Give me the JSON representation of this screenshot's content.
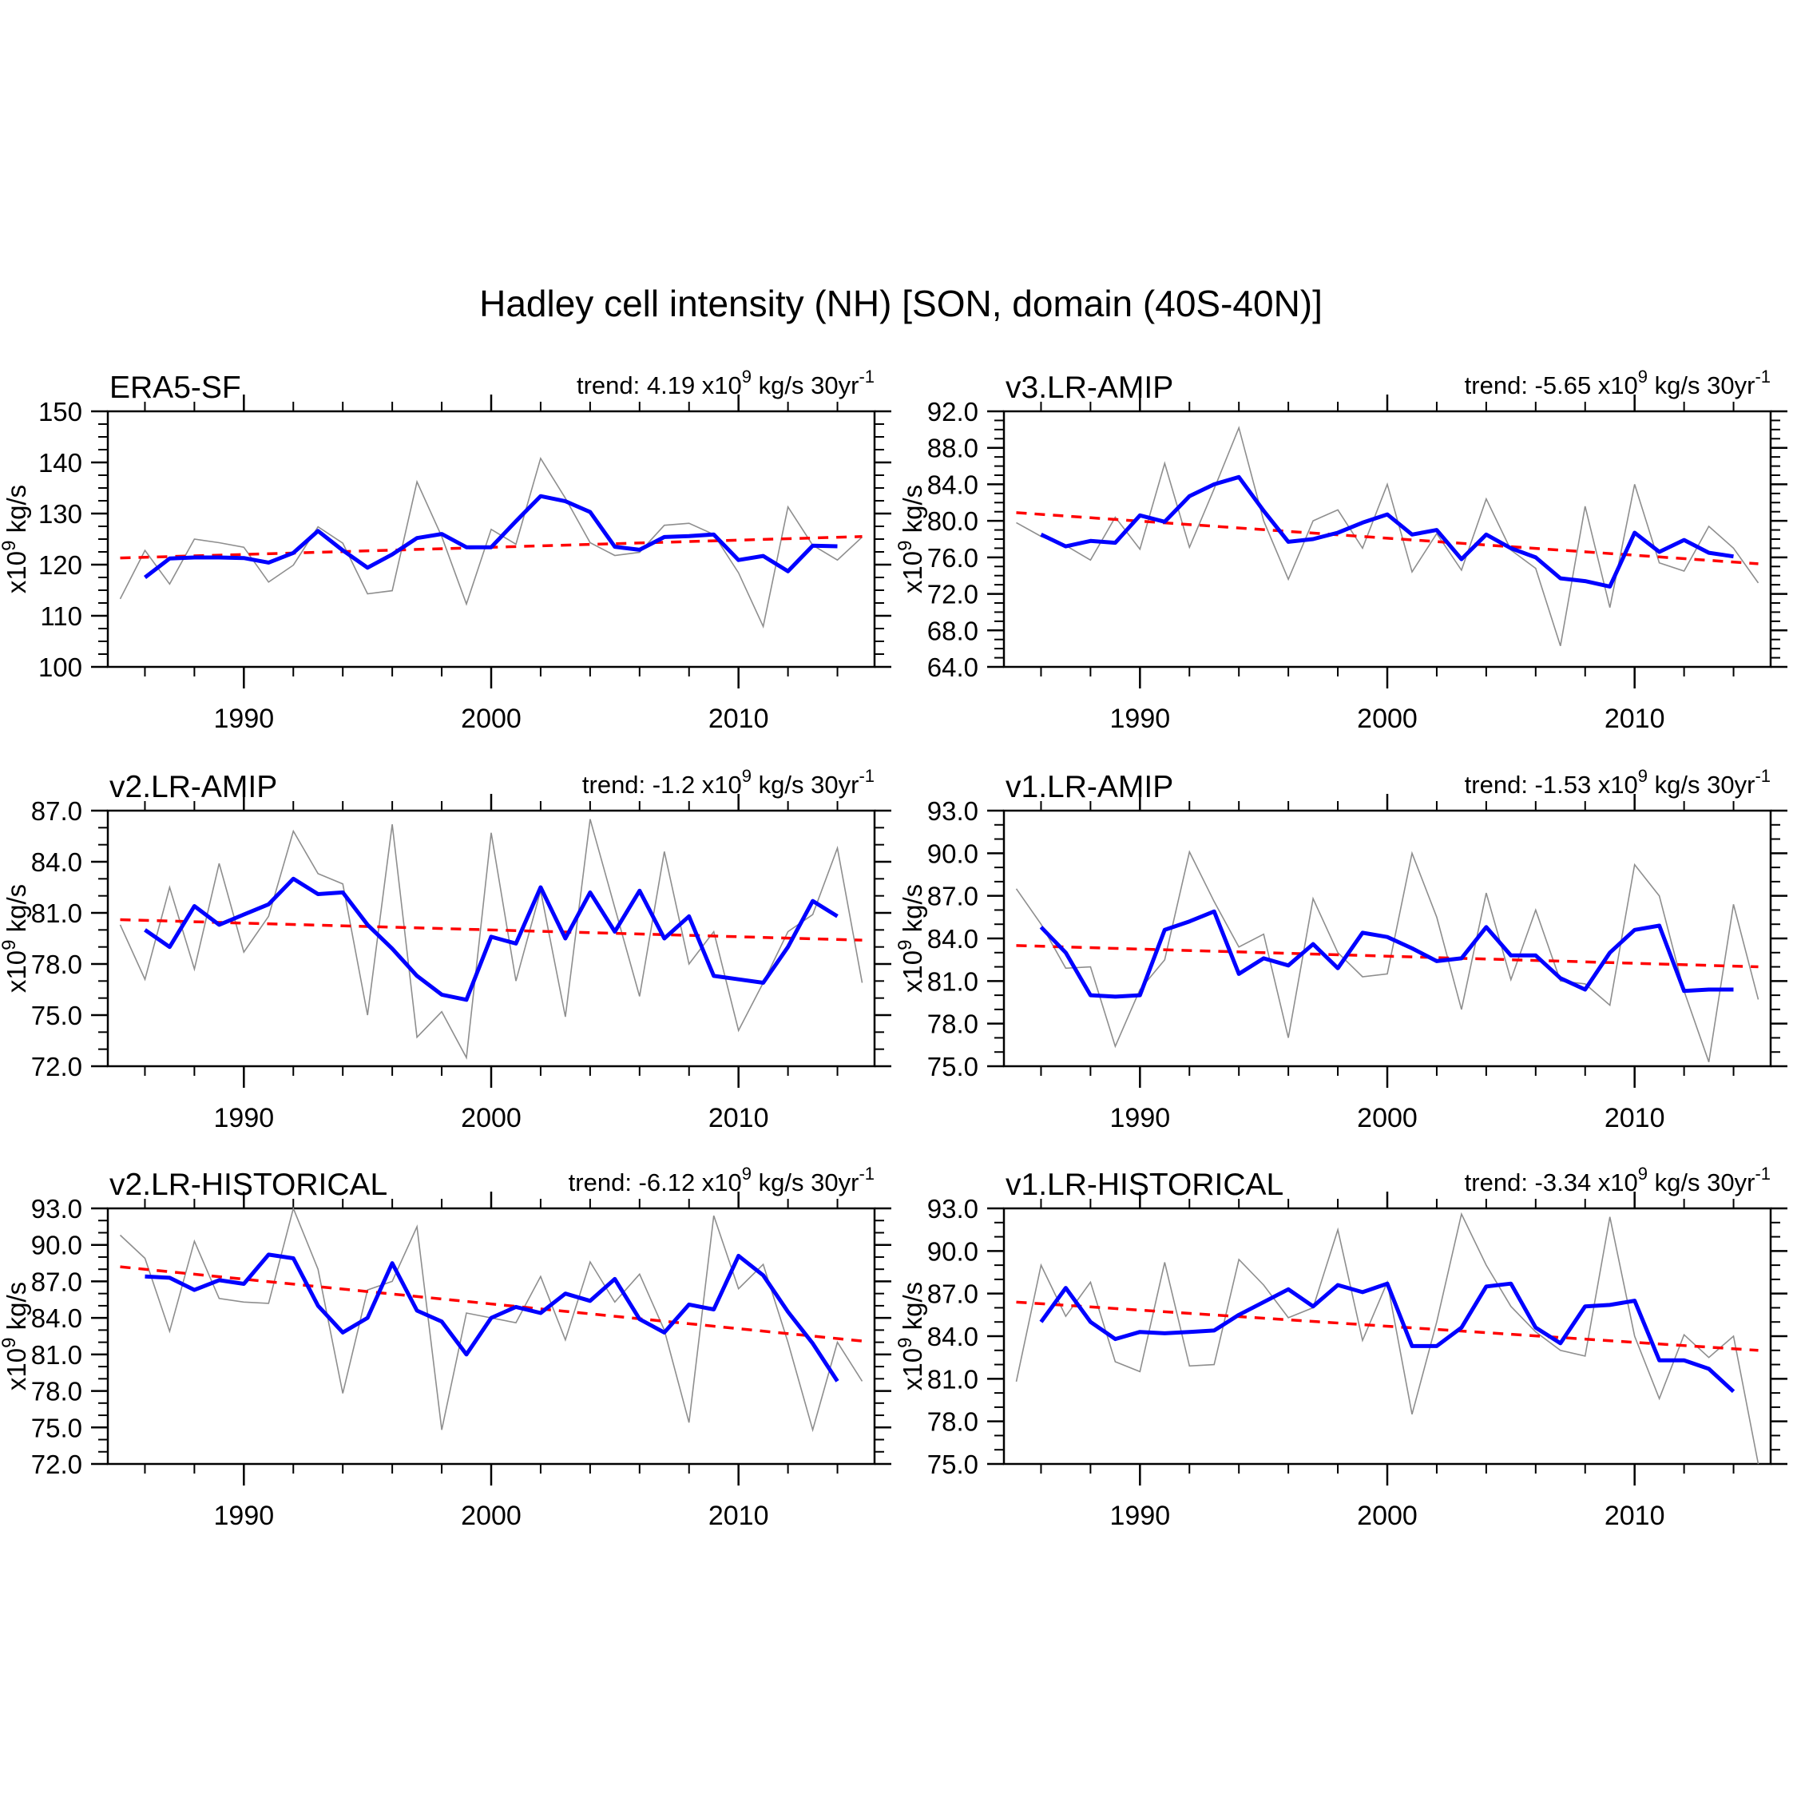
{
  "title": "Hadley cell intensity (NH) [SON, domain (40S-40N)]",
  "y_axis_label": {
    "pre": "x10",
    "sup": "9",
    "post": " kg/s"
  },
  "colors": {
    "background": "#ffffff",
    "axis": "#000000",
    "annual": "#8e8e8e",
    "smoothed": "#0000ff",
    "trend": "#ff0000"
  },
  "x_axis": {
    "lim": [
      1984.5,
      2015.5
    ],
    "major_ticks": [
      1990,
      2000,
      2010
    ],
    "tick_labels": [
      "1990",
      "2000",
      "2010"
    ],
    "minor_start": 1986,
    "minor_step": 2
  },
  "chart_data": [
    {
      "type": "line",
      "name": "ERA5-SF",
      "trend_per_30yr": 4.19,
      "trend": {
        "pre": "trend: 4.19 x10",
        "sup1": "9",
        "mid": " kg/s 30yr",
        "sup2": "-1"
      },
      "ylim": [
        100,
        150
      ],
      "y_major_ticks": [
        100,
        110,
        120,
        130,
        140,
        150
      ],
      "y_tick_labels": [
        "100",
        "110",
        "120",
        "130",
        "140",
        "150"
      ],
      "y_minor_step": 2.5,
      "series": {
        "annual": {
          "name": "annual",
          "start_year": 1985,
          "values": [
            113.3,
            122.8,
            116.2,
            125.0,
            124.3,
            123.4,
            116.6,
            119.9,
            127.4,
            124.2,
            114.3,
            114.9,
            136.2,
            125.5,
            112.3,
            126.9,
            124.0,
            140.8,
            133.0,
            124.3,
            121.8,
            122.4,
            127.7,
            128.1,
            125.9,
            118.4,
            107.9,
            131.3,
            123.8,
            120.9,
            125.4
          ]
        },
        "smoothed": {
          "name": "smoothed",
          "start_year": 1986,
          "values": [
            117.5,
            121.2,
            121.4,
            121.4,
            121.3,
            120.4,
            122.3,
            126.6,
            122.8,
            119.4,
            122.0,
            125.2,
            126.0,
            123.4,
            123.4,
            128.5,
            133.4,
            132.4,
            130.3,
            123.5,
            122.9,
            125.4,
            125.6,
            125.9,
            120.9,
            121.7,
            118.7,
            123.7,
            123.6
          ]
        },
        "trend_line": {
          "x": [
            1985,
            2015
          ],
          "values": [
            121.3,
            125.5
          ]
        }
      }
    },
    {
      "type": "line",
      "name": "v3.LR-AMIP",
      "trend_per_30yr": -5.65,
      "trend": {
        "pre": "trend: -5.65 x10",
        "sup1": "9",
        "mid": " kg/s 30yr",
        "sup2": "-1"
      },
      "ylim": [
        64,
        92
      ],
      "y_major_ticks": [
        64,
        68,
        72,
        76,
        80,
        84,
        88,
        92
      ],
      "y_tick_labels": [
        "64.0",
        "68.0",
        "72.0",
        "76.0",
        "80.0",
        "84.0",
        "88.0",
        "92.0"
      ],
      "y_minor_step": 1,
      "series": {
        "annual": {
          "name": "annual",
          "start_year": 1985,
          "values": [
            79.8,
            78.3,
            77.3,
            75.7,
            80.4,
            76.9,
            86.3,
            77.1,
            83.5,
            90.2,
            80.0,
            73.6,
            80.0,
            81.2,
            77.0,
            84.0,
            74.4,
            78.6,
            74.6,
            82.4,
            76.8,
            74.8,
            66.3,
            81.6,
            70.5,
            84.0,
            75.4,
            74.5,
            79.4,
            77.0,
            73.2
          ]
        },
        "smoothed": {
          "name": "smoothed",
          "start_year": 1986,
          "values": [
            78.5,
            77.2,
            77.8,
            77.6,
            80.6,
            79.9,
            82.7,
            84.0,
            84.8,
            81.1,
            77.7,
            78.0,
            78.7,
            79.8,
            80.7,
            78.5,
            79.0,
            75.8,
            78.5,
            77.0,
            76.0,
            73.7,
            73.4,
            72.8,
            78.7,
            76.6,
            77.9,
            76.5,
            76.1
          ]
        },
        "trend_line": {
          "x": [
            1985,
            2015
          ],
          "values": [
            80.9,
            75.3
          ]
        }
      }
    },
    {
      "type": "line",
      "name": "v2.LR-AMIP",
      "trend_per_30yr": -1.2,
      "trend": {
        "pre": "trend: -1.2 x10",
        "sup1": "9",
        "mid": " kg/s 30yr",
        "sup2": "-1"
      },
      "ylim": [
        72,
        87
      ],
      "y_major_ticks": [
        72,
        75,
        78,
        81,
        84,
        87
      ],
      "y_tick_labels": [
        "72.0",
        "75.0",
        "78.0",
        "81.0",
        "84.0",
        "87.0"
      ],
      "y_minor_step": 1,
      "series": {
        "annual": {
          "name": "annual",
          "start_year": 1985,
          "values": [
            80.3,
            77.1,
            82.5,
            77.7,
            83.9,
            78.7,
            80.8,
            85.8,
            83.3,
            82.7,
            75.0,
            86.2,
            73.7,
            75.2,
            72.5,
            85.7,
            77.0,
            82.3,
            74.9,
            86.5,
            81.3,
            76.1,
            84.6,
            78.0,
            79.9,
            74.1,
            76.9,
            79.9,
            80.9,
            84.8,
            76.9
          ]
        },
        "smoothed": {
          "name": "smoothed",
          "start_year": 1986,
          "values": [
            80.0,
            79.0,
            81.4,
            80.3,
            80.9,
            81.5,
            83.0,
            82.1,
            82.2,
            80.3,
            78.9,
            77.3,
            76.2,
            75.9,
            79.6,
            79.2,
            82.5,
            79.5,
            82.2,
            79.9,
            82.3,
            79.5,
            80.8,
            77.3,
            77.1,
            76.9,
            79.0,
            81.7,
            80.8
          ]
        },
        "trend_line": {
          "x": [
            1985,
            2015
          ],
          "values": [
            80.6,
            79.4
          ]
        }
      }
    },
    {
      "type": "line",
      "name": "v1.LR-AMIP",
      "trend_per_30yr": -1.53,
      "trend": {
        "pre": "trend: -1.53 x10",
        "sup1": "9",
        "mid": " kg/s 30yr",
        "sup2": "-1"
      },
      "ylim": [
        75,
        93
      ],
      "y_major_ticks": [
        75,
        78,
        81,
        84,
        87,
        90,
        93
      ],
      "y_tick_labels": [
        "75.0",
        "78.0",
        "81.0",
        "84.0",
        "87.0",
        "90.0",
        "93.0"
      ],
      "y_minor_step": 1,
      "series": {
        "annual": {
          "name": "annual",
          "start_year": 1985,
          "values": [
            87.5,
            85.0,
            81.9,
            82.0,
            76.4,
            80.4,
            82.5,
            90.1,
            86.6,
            83.4,
            84.3,
            77.0,
            86.8,
            83.0,
            81.3,
            81.5,
            90.0,
            85.5,
            79.0,
            87.2,
            81.1,
            86.0,
            81.0,
            80.8,
            79.3,
            89.2,
            87.0,
            80.3,
            75.3,
            86.4,
            79.7
          ]
        },
        "smoothed": {
          "name": "smoothed",
          "start_year": 1986,
          "values": [
            84.8,
            83.0,
            80.0,
            79.9,
            80.0,
            84.6,
            85.2,
            85.9,
            81.5,
            82.6,
            82.1,
            83.6,
            81.9,
            84.4,
            84.1,
            83.3,
            82.4,
            82.6,
            84.8,
            82.8,
            82.8,
            81.2,
            80.4,
            83.0,
            84.6,
            84.9,
            80.3,
            80.4,
            80.4
          ]
        },
        "trend_line": {
          "x": [
            1985,
            2015
          ],
          "values": [
            83.5,
            82.0
          ]
        }
      }
    },
    {
      "type": "line",
      "name": "v2.LR-HISTORICAL",
      "trend_per_30yr": -6.12,
      "trend": {
        "pre": "trend: -6.12 x10",
        "sup1": "9",
        "mid": " kg/s 30yr",
        "sup2": "-1"
      },
      "ylim": [
        72,
        93
      ],
      "y_major_ticks": [
        72,
        75,
        78,
        81,
        84,
        87,
        90,
        93
      ],
      "y_tick_labels": [
        "72.0",
        "75.0",
        "78.0",
        "81.0",
        "84.0",
        "87.0",
        "90.0",
        "93.0"
      ],
      "y_minor_step": 1,
      "series": {
        "annual": {
          "name": "annual",
          "start_year": 1985,
          "values": [
            90.8,
            88.9,
            82.9,
            90.3,
            85.6,
            85.3,
            85.2,
            93.0,
            88.0,
            77.8,
            86.3,
            87.0,
            91.5,
            74.8,
            84.4,
            84.0,
            83.6,
            87.4,
            82.2,
            88.6,
            85.3,
            87.6,
            83.0,
            75.4,
            92.4,
            86.4,
            88.4,
            82.0,
            74.8,
            82.0,
            78.8
          ]
        },
        "smoothed": {
          "name": "smoothed",
          "start_year": 1986,
          "values": [
            87.4,
            87.3,
            86.3,
            87.1,
            86.8,
            89.2,
            88.9,
            85.0,
            82.8,
            84.0,
            88.5,
            84.6,
            83.7,
            81.0,
            84.0,
            84.9,
            84.4,
            86.0,
            85.4,
            87.2,
            83.9,
            82.8,
            85.1,
            84.7,
            89.1,
            87.5,
            84.5,
            81.9,
            78.8
          ]
        },
        "trend_line": {
          "x": [
            1985,
            2015
          ],
          "values": [
            88.2,
            82.1
          ]
        }
      }
    },
    {
      "type": "line",
      "name": "v1.LR-HISTORICAL",
      "trend_per_30yr": -3.34,
      "trend": {
        "pre": "trend: -3.34 x10",
        "sup1": "9",
        "mid": " kg/s 30yr",
        "sup2": "-1"
      },
      "ylim": [
        75,
        93
      ],
      "y_major_ticks": [
        75,
        78,
        81,
        84,
        87,
        90,
        93
      ],
      "y_tick_labels": [
        "75.0",
        "78.0",
        "81.0",
        "84.0",
        "87.0",
        "90.0",
        "93.0"
      ],
      "y_minor_step": 1,
      "series": {
        "annual": {
          "name": "annual",
          "start_year": 1985,
          "values": [
            80.8,
            89.0,
            85.4,
            87.8,
            82.2,
            81.5,
            89.2,
            81.9,
            82.0,
            89.4,
            87.6,
            85.3,
            86.0,
            91.5,
            83.7,
            87.8,
            78.5,
            85.0,
            92.6,
            89.0,
            86.1,
            84.3,
            83.0,
            82.6,
            92.4,
            84.0,
            79.6,
            84.1,
            82.5,
            84.0,
            75.0
          ]
        },
        "smoothed": {
          "name": "smoothed",
          "start_year": 1986,
          "values": [
            85.0,
            87.4,
            85.0,
            83.8,
            84.3,
            84.2,
            84.3,
            84.4,
            85.5,
            86.4,
            87.3,
            86.1,
            87.6,
            87.1,
            87.7,
            83.3,
            83.3,
            84.6,
            87.5,
            87.7,
            84.6,
            83.5,
            86.1,
            86.2,
            86.5,
            82.3,
            82.3,
            81.7,
            80.1
          ]
        },
        "trend_line": {
          "x": [
            1985,
            2015
          ],
          "values": [
            86.4,
            83.0
          ]
        }
      }
    }
  ]
}
